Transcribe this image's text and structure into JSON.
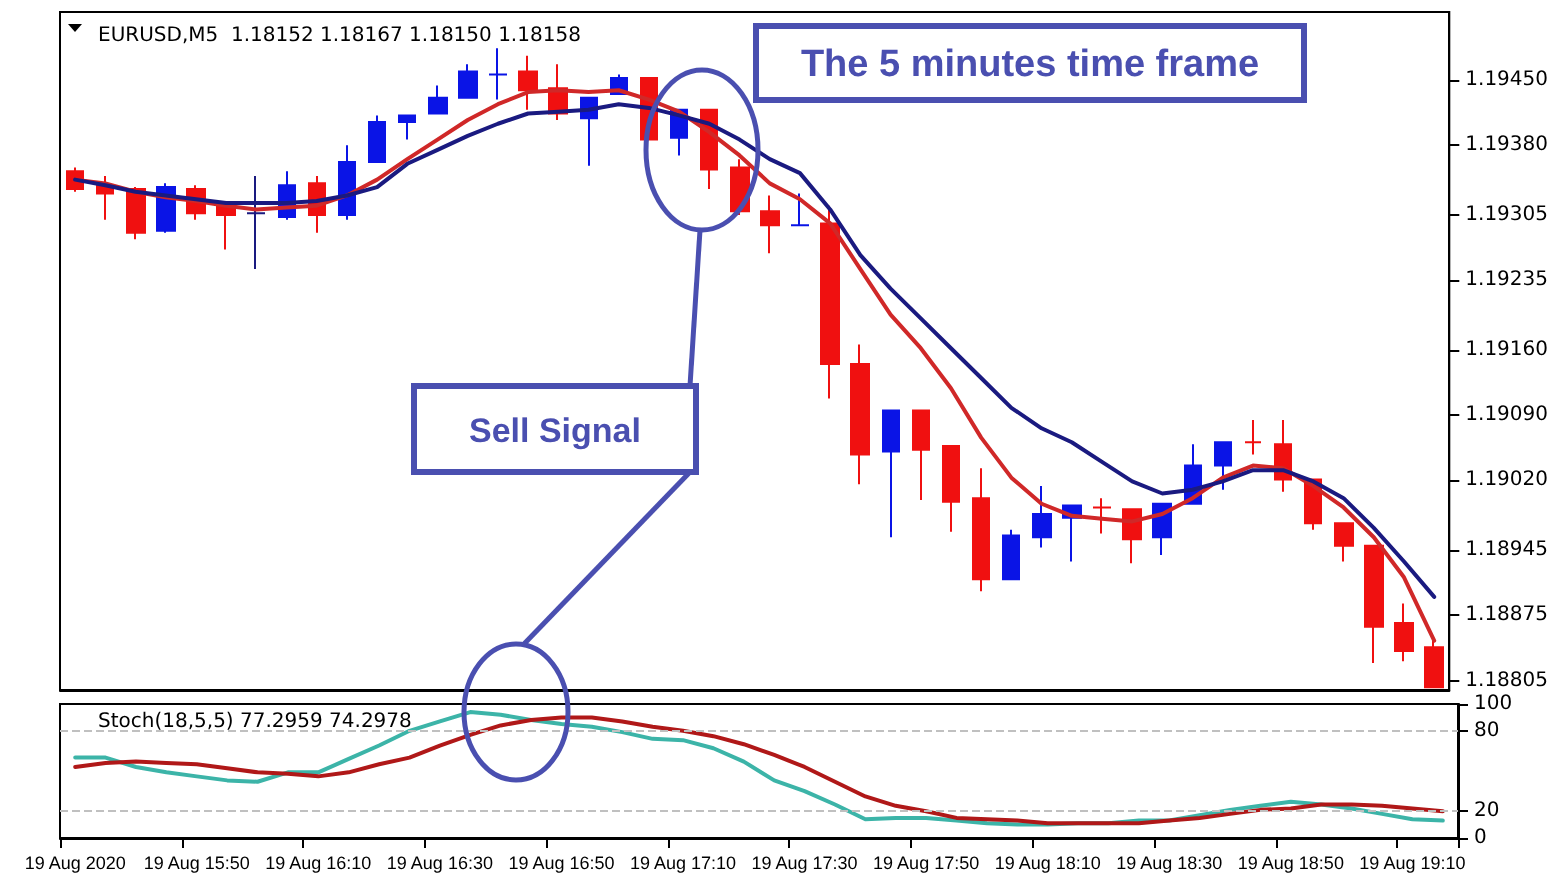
{
  "chart_data": [
    {
      "type": "candlestick",
      "title": "EURUSD,M5  1.18152 1.18167 1.18150 1.18158",
      "categories": [
        null,
        null,
        null,
        null,
        null,
        null,
        null,
        null,
        null,
        null,
        null,
        null,
        null,
        null,
        null,
        null,
        null,
        null,
        null,
        null,
        null,
        null,
        null,
        null,
        null,
        null,
        null,
        null,
        null,
        null,
        null,
        null,
        null,
        null,
        null,
        null,
        null,
        null,
        null,
        null,
        null,
        null,
        null,
        null,
        null,
        null
      ],
      "ohlc": [
        [
          1.19352,
          1.19356,
          1.1933,
          1.19333
        ],
        [
          1.19337,
          1.19347,
          1.193,
          1.19328
        ],
        [
          1.19333,
          1.19335,
          1.19279,
          1.19286
        ],
        [
          1.19288,
          1.19339,
          1.19286,
          1.19335
        ],
        [
          1.19333,
          1.19337,
          1.193,
          1.19307
        ],
        [
          1.19315,
          1.19315,
          1.19268,
          1.19305
        ],
        [
          1.19307,
          1.19347,
          1.19247,
          1.19307
        ],
        [
          1.19303,
          1.19352,
          1.193,
          1.19337
        ],
        [
          1.19339,
          1.19347,
          1.19286,
          1.19305
        ],
        [
          1.19305,
          1.1938,
          1.193,
          1.19362
        ],
        [
          1.19362,
          1.19412,
          1.19362,
          1.19405
        ],
        [
          1.19405,
          1.19412,
          1.19386,
          1.19412
        ],
        [
          1.19414,
          1.19444,
          1.19414,
          1.19431
        ],
        [
          1.19431,
          1.19467,
          1.19431,
          1.19459
        ],
        [
          1.19456,
          1.19484,
          1.19429,
          1.19456
        ],
        [
          1.19459,
          1.19476,
          1.19418,
          1.19439
        ],
        [
          1.19441,
          1.19467,
          1.19407,
          1.19414
        ],
        [
          1.19409,
          1.19431,
          1.19358,
          1.19431
        ],
        [
          1.19435,
          1.19456,
          1.19435,
          1.19452
        ],
        [
          1.19452,
          1.19452,
          1.19386,
          1.19386
        ],
        [
          1.19388,
          1.19418,
          1.19369,
          1.19418
        ],
        [
          1.19418,
          1.19418,
          1.19333,
          1.19354
        ],
        [
          1.19356,
          1.19365,
          1.19305,
          1.19309
        ],
        [
          1.19309,
          1.19326,
          1.19264,
          1.19294
        ],
        [
          1.19294,
          1.19328,
          1.19294,
          1.19294
        ],
        [
          1.19296,
          1.19315,
          1.19108,
          1.19145
        ],
        [
          1.19145,
          1.19166,
          1.19016,
          1.19048
        ],
        [
          1.19051,
          1.19095,
          1.18959,
          1.19095
        ],
        [
          1.19095,
          1.19095,
          1.18999,
          1.19053
        ],
        [
          1.19057,
          1.19057,
          1.18965,
          1.18997
        ],
        [
          1.19001,
          1.19033,
          1.18901,
          1.18914
        ],
        [
          1.18914,
          1.18967,
          1.18914,
          1.18961
        ],
        [
          1.18959,
          1.19014,
          1.18948,
          1.18984
        ],
        [
          1.1898,
          1.18993,
          1.18933,
          1.18993
        ],
        [
          1.18991,
          1.19001,
          1.18963,
          1.18991
        ],
        [
          1.18989,
          1.18989,
          1.18931,
          1.18957
        ],
        [
          1.18959,
          1.18995,
          1.1894,
          1.18995
        ],
        [
          1.18995,
          1.19059,
          1.18995,
          1.19036
        ],
        [
          1.19036,
          1.19061,
          1.1901,
          1.19061
        ],
        [
          1.19061,
          1.19085,
          1.19048,
          1.19061
        ],
        [
          1.19059,
          1.19085,
          1.19008,
          1.19021
        ],
        [
          1.19021,
          1.19021,
          1.18967,
          1.18974
        ],
        [
          1.18974,
          1.18974,
          1.18933,
          1.1895
        ],
        [
          1.1895,
          1.1895,
          1.18824,
          1.18863
        ],
        [
          1.18867,
          1.18888,
          1.18826,
          1.18837
        ],
        [
          1.18841,
          1.18852,
          1.18798,
          1.18798
        ]
      ],
      "colors": [
        "#f01010",
        "#f01010",
        "#f01010",
        "#0a14e6",
        "#f01010",
        "#f01010",
        "#1a1a80",
        "#0a14e6",
        "#f01010",
        "#0a14e6",
        "#0a14e6",
        "#0a14e6",
        "#0a14e6",
        "#0a14e6",
        "#0a14e6",
        "#f01010",
        "#f01010",
        "#0a14e6",
        "#0a14e6",
        "#f01010",
        "#0a14e6",
        "#f01010",
        "#f01010",
        "#f01010",
        "#0a14e6",
        "#f01010",
        "#f01010",
        "#0a14e6",
        "#f01010",
        "#f01010",
        "#f01010",
        "#0a14e6",
        "#0a14e6",
        "#0a14e6",
        "#f01010",
        "#f01010",
        "#0a14e6",
        "#0a14e6",
        "#0a14e6",
        "#f01010",
        "#f01010",
        "#f01010",
        "#f01010",
        "#f01010",
        "#f01010",
        "#f01010"
      ],
      "series": [
        {
          "type": "line",
          "color": "#d02828",
          "values": [
            1.19343,
            1.19339,
            1.1933,
            1.19324,
            1.1932,
            1.19315,
            1.19311,
            1.19313,
            1.19315,
            1.19326,
            1.19343,
            1.19365,
            1.19386,
            1.19407,
            1.19424,
            1.19437,
            1.19439,
            1.19437,
            1.19439,
            1.19429,
            1.19416,
            1.19394,
            1.19369,
            1.19339,
            1.19322,
            1.19296,
            1.19247,
            1.19198,
            1.19162,
            1.19119,
            1.19066,
            1.19023,
            1.18995,
            1.18982,
            1.18979,
            1.18976,
            1.18984,
            1.19001,
            1.19023,
            1.19036,
            1.19033,
            1.19014,
            1.18991,
            1.18959,
            1.18916,
            1.18848
          ]
        },
        {
          "type": "line",
          "color": "#1a1a80",
          "values": [
            1.19343,
            1.19337,
            1.1933,
            1.19326,
            1.19322,
            1.19318,
            1.19318,
            1.19318,
            1.1932,
            1.19326,
            1.19335,
            1.1936,
            1.19375,
            1.1939,
            1.19403,
            1.19414,
            1.19416,
            1.19418,
            1.19424,
            1.1942,
            1.19412,
            1.19403,
            1.19386,
            1.19365,
            1.1935,
            1.19311,
            1.19262,
            1.19226,
            1.19194,
            1.19162,
            1.1913,
            1.19098,
            1.19076,
            1.19061,
            1.1904,
            1.19019,
            1.19006,
            1.1901,
            1.19019,
            1.19031,
            1.19031,
            1.19019,
            1.19001,
            1.18969,
            1.18933,
            1.18895
          ]
        }
      ],
      "ylim": [
        1.18795,
        1.19523
      ],
      "yticks": [
        {
          "value": 1.18805,
          "label": "1.18805"
        },
        {
          "value": 1.18875,
          "label": "1.18875"
        },
        {
          "value": 1.18945,
          "label": "1.18945"
        },
        {
          "value": 1.1902,
          "label": "1.19020"
        },
        {
          "value": 1.1909,
          "label": "1.19090"
        },
        {
          "value": 1.1916,
          "label": "1.19160"
        },
        {
          "value": 1.19235,
          "label": "1.19235"
        },
        {
          "value": 1.19305,
          "label": "1.19305"
        },
        {
          "value": 1.1938,
          "label": "1.19380"
        },
        {
          "value": 1.1945,
          "label": "1.19450"
        }
      ],
      "annotations": [
        "The 5 minutes time frame",
        "Sell Signal"
      ],
      "tick_labels": "y",
      "marker": "none",
      "line_style": "solid"
    },
    {
      "type": "line",
      "title": "Stoch(18,5,5) 77.2959 74.2978",
      "categories": [
        "19 Aug 2020",
        null,
        null,
        null,
        "19 Aug 15:50",
        null,
        null,
        null,
        "19 Aug 16:10",
        null,
        null,
        null,
        "19 Aug 16:30",
        null,
        null,
        null,
        "19 Aug 16:50",
        null,
        null,
        null,
        "19 Aug 17:10",
        null,
        null,
        null,
        "19 Aug 17:30",
        null,
        null,
        null,
        "19 Aug 17:50",
        null,
        null,
        null,
        "19 Aug 18:10",
        null,
        null,
        null,
        "19 Aug 18:30",
        null,
        null,
        null,
        "19 Aug 18:50",
        null,
        null,
        null,
        "19 Aug 19:10",
        null
      ],
      "series": [
        {
          "color": "#3cb4a8",
          "values": [
            60,
            60,
            53,
            49,
            46,
            43,
            42,
            49,
            49,
            59,
            69,
            80,
            87,
            94,
            92,
            88,
            85,
            83,
            79,
            74,
            73,
            67,
            57,
            43,
            35,
            25,
            14,
            15,
            15,
            13,
            11,
            10,
            10,
            11,
            11,
            13,
            13,
            17,
            21,
            24,
            27,
            25,
            22,
            18,
            14,
            13
          ]
        },
        {
          "color": "#b01818",
          "values": [
            53,
            56,
            57,
            56,
            55,
            52,
            49,
            48,
            46,
            49,
            55,
            60,
            69,
            77,
            84,
            88,
            90,
            90,
            87,
            83,
            80,
            76,
            70,
            62,
            53,
            42,
            31,
            24,
            20,
            15,
            14,
            13,
            11,
            11,
            11,
            11,
            13,
            15,
            18,
            21,
            22,
            25,
            25,
            24,
            22,
            20
          ]
        }
      ],
      "ylim": [
        0,
        100
      ],
      "yticks": [
        0,
        20,
        80,
        100
      ],
      "ref_lines": [
        {
          "axis": "y",
          "value": 20,
          "color": "#c0c0c0",
          "line_style": "dashed"
        },
        {
          "axis": "y",
          "value": 80,
          "color": "#c0c0c0",
          "line_style": "dashed"
        }
      ],
      "marker": "none",
      "line_style": "solid"
    }
  ]
}
